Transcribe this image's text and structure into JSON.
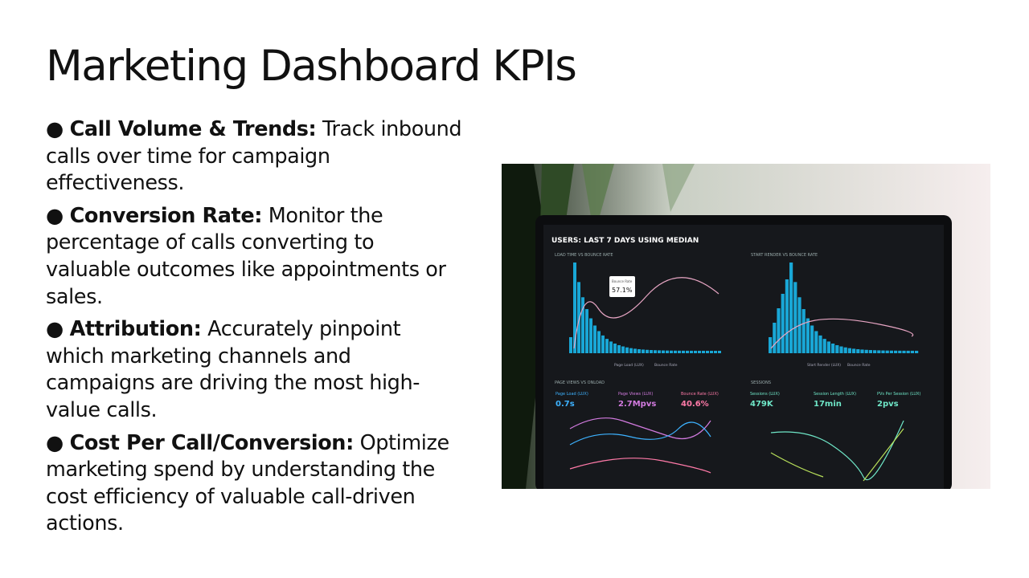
{
  "title": "Marketing Dashboard KPIs",
  "bullets": [
    {
      "label": "Call Volume & Trends:",
      "text": "Track inbound calls over time for campaign effectiveness."
    },
    {
      "label": "Conversion Rate:",
      "text": "Monitor the percentage of calls converting to valuable outcomes like appointments or sales."
    },
    {
      "label": "Attribution:",
      "text": "Accurately pinpoint which marketing channels and campaigns are driving the most high-value calls."
    },
    {
      "label": "Cost Per Call/Conversion:",
      "text": "Optimize marketing spend by understanding the cost efficiency of valuable call-driven actions."
    }
  ],
  "image": {
    "header": "USERS: LAST 7 DAYS USING MEDIAN",
    "panels": [
      "LOAD TIME VS BOUNCE RATE",
      "START RENDER VS BOUNCE RATE",
      "PAGE VIEWS VS ONLOAD",
      "SESSIONS"
    ],
    "tooltip": {
      "label": "Bounce Rate",
      "value": "57.1%"
    },
    "legends": [
      "Page Load (LUX)",
      "Bounce Rate",
      "Start Render (LUX)",
      "Bounce Rate"
    ],
    "metrics": [
      {
        "label": "Page Load (LUX)",
        "value": "0.7s"
      },
      {
        "label": "Page Views (LUX)",
        "value": "2.7Mpvs"
      },
      {
        "label": "Bounce Rate (LUX)",
        "value": "40.6%"
      },
      {
        "label": "Sessions (LUX)",
        "value": "479K"
      },
      {
        "label": "Session Length (LUX)",
        "value": "17min"
      },
      {
        "label": "PVs Per Session (LUX)",
        "value": "2pvs"
      }
    ]
  }
}
